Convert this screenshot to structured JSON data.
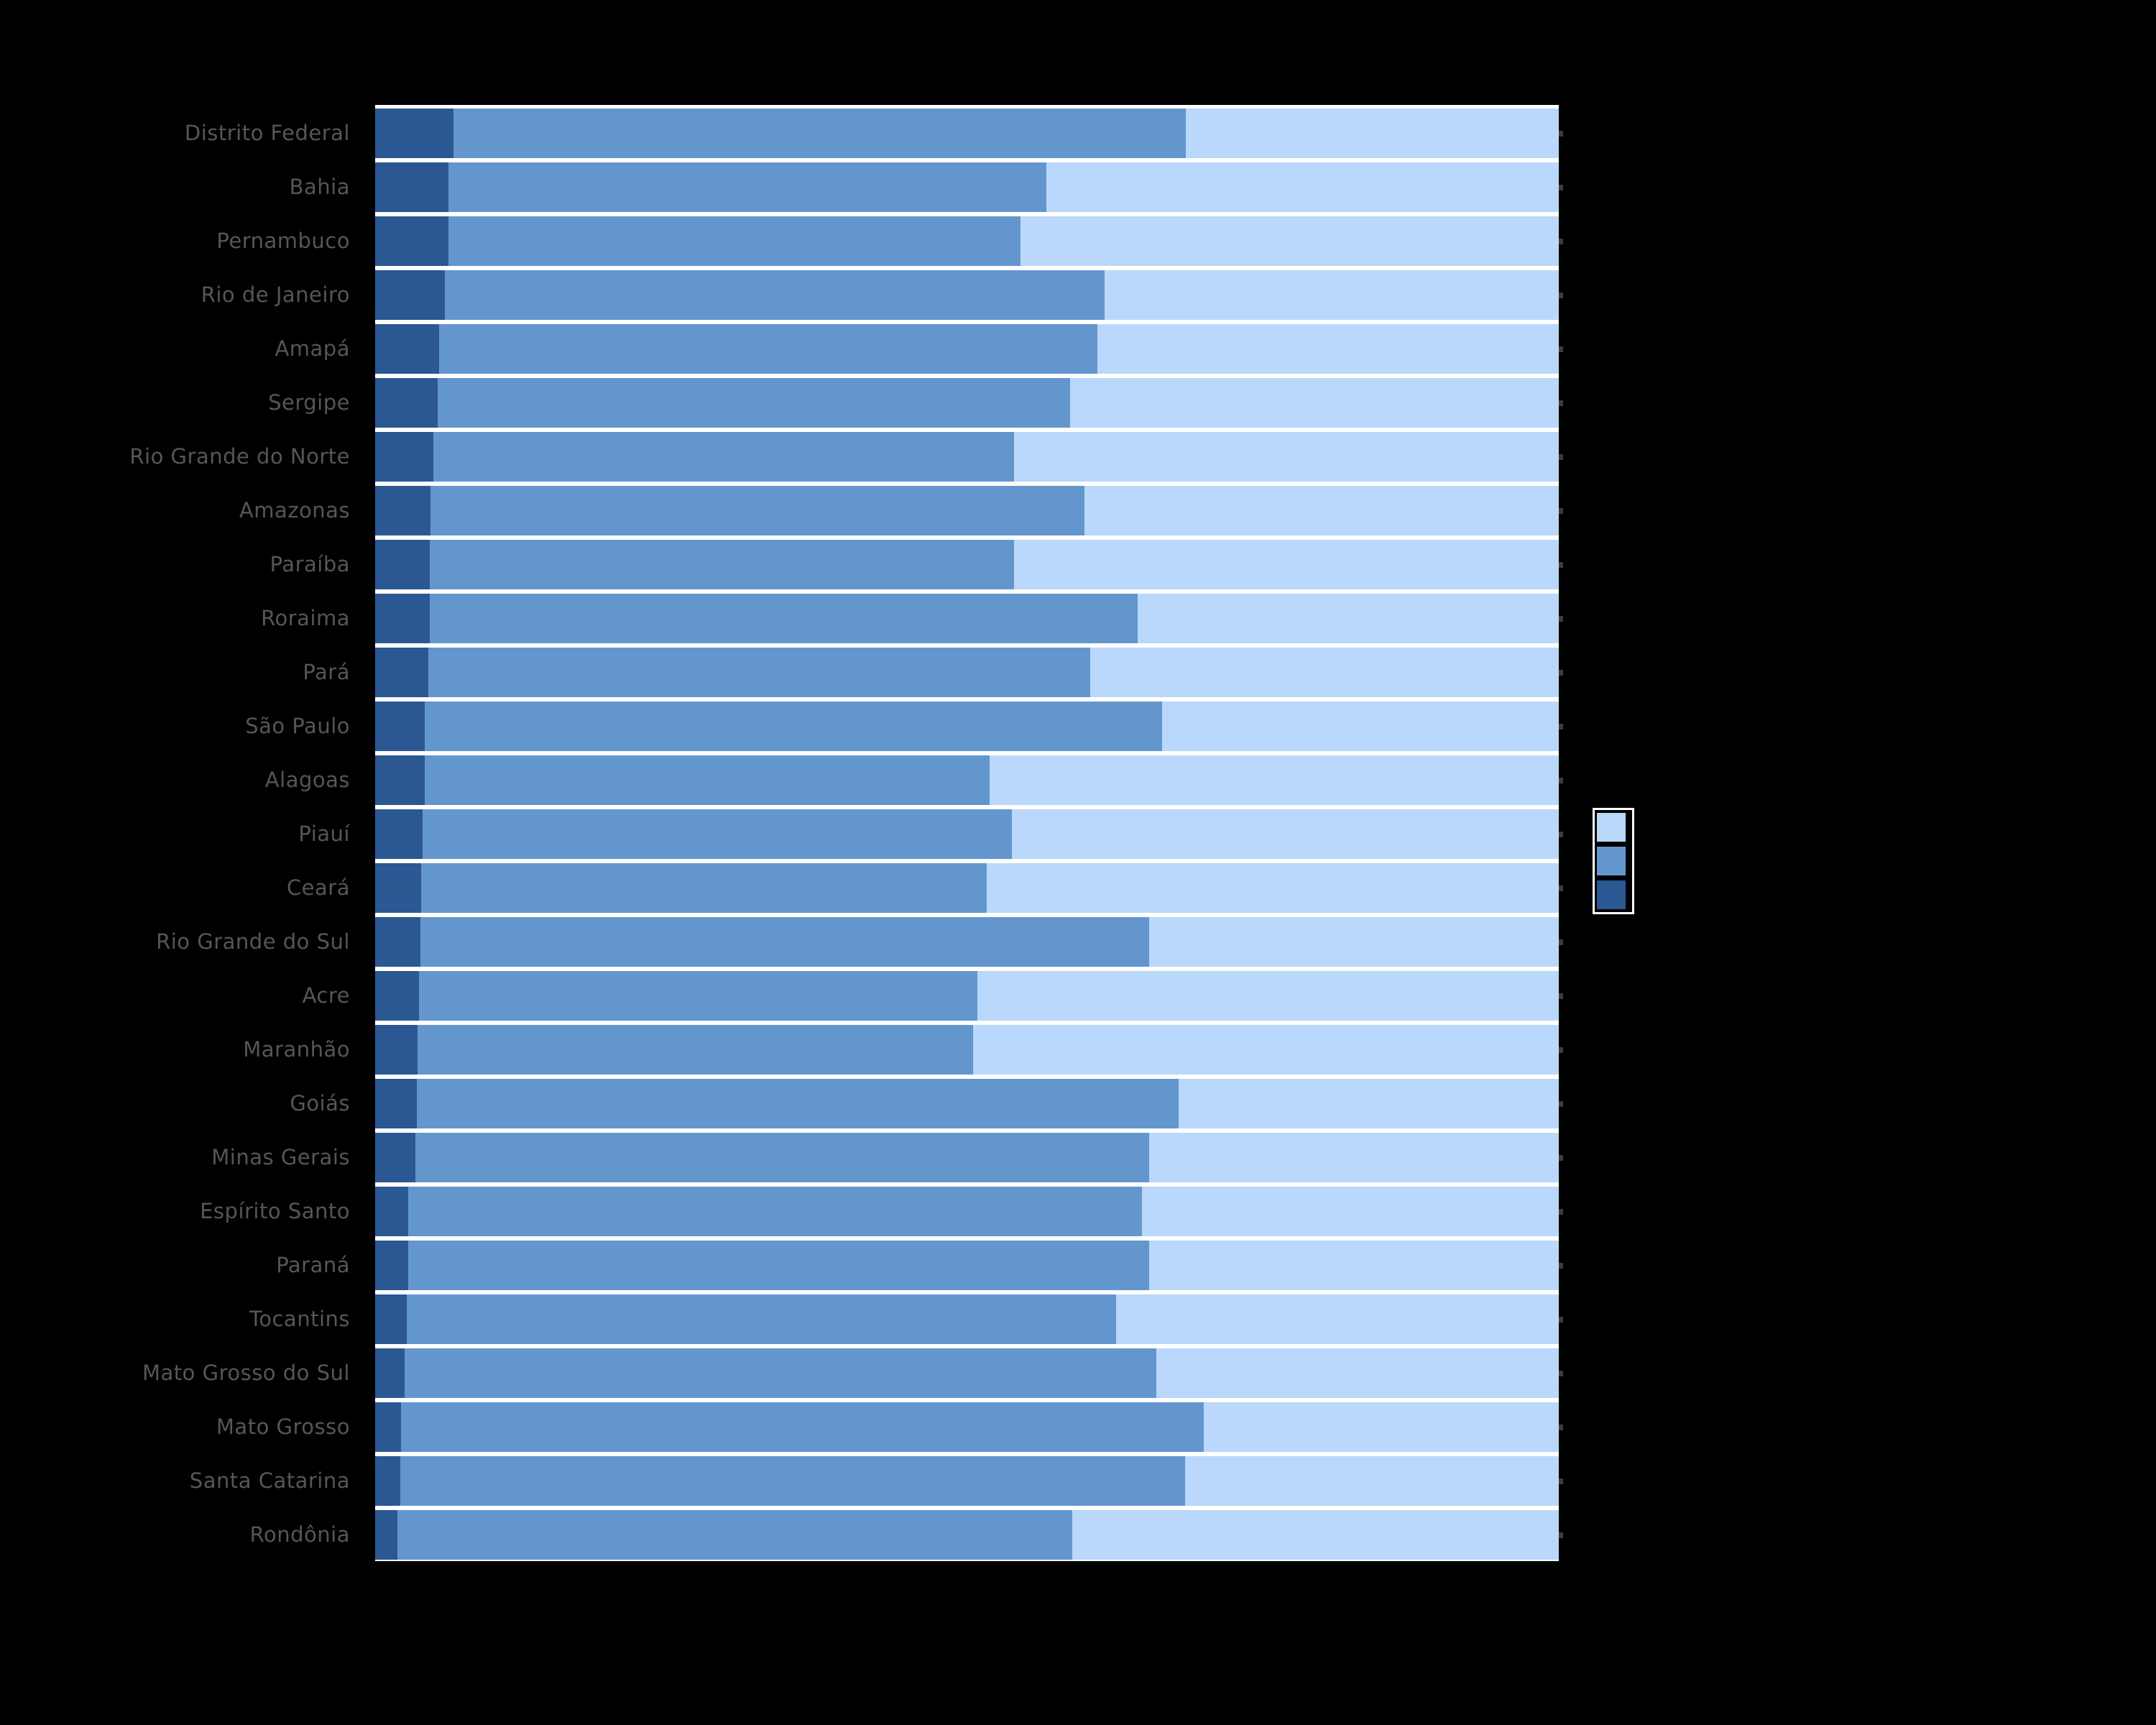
{
  "figure": {
    "background_color": "#000000",
    "plot_background_color": "#ffffff",
    "tick_label_color": "#565656"
  },
  "legend": {
    "position": "right-center",
    "entries": [
      {
        "name": "light-blue",
        "color": "#B9D8FB",
        "label": ""
      },
      {
        "name": "medium-blue",
        "color": "#6496CE",
        "label": ""
      },
      {
        "name": "dark-blue",
        "color": "#2B5792",
        "label": ""
      }
    ]
  },
  "chart_data": {
    "type": "bar",
    "orientation": "horizontal",
    "stacked": true,
    "unit": "percent",
    "x_range": [
      0,
      100
    ],
    "grid": false,
    "categories": [
      "Distrito Federal",
      "Bahia",
      "Pernambuco",
      "Rio de Janeiro",
      "Amapá",
      "Sergipe",
      "Rio Grande do Norte",
      "Amazonas",
      "Paraíba",
      "Roraima",
      "Pará",
      "São Paulo",
      "Alagoas",
      "Piauí",
      "Ceará",
      "Rio Grande do Sul",
      "Acre",
      "Maranhão",
      "Goiás",
      "Minas Gerais",
      "Espírito Santo",
      "Paraná",
      "Tocantins",
      "Mato Grosso do Sul",
      "Mato Grosso",
      "Santa Catarina",
      "Rondônia"
    ],
    "series": [
      {
        "name": "dark-blue",
        "color": "#2B5792",
        "values": [
          6.6,
          6.2,
          6.2,
          5.9,
          5.4,
          5.3,
          4.9,
          4.7,
          4.6,
          4.6,
          4.5,
          4.2,
          4.2,
          4.0,
          3.9,
          3.8,
          3.7,
          3.6,
          3.5,
          3.4,
          2.8,
          2.8,
          2.7,
          2.5,
          2.2,
          2.1,
          1.9
        ]
      },
      {
        "name": "medium-blue",
        "color": "#6496CE",
        "values": [
          61.9,
          50.5,
          48.3,
          55.7,
          55.6,
          53.4,
          49.1,
          55.2,
          49.4,
          59.8,
          55.9,
          62.3,
          47.7,
          49.8,
          47.8,
          61.6,
          47.2,
          46.9,
          64.4,
          62.0,
          62.0,
          62.6,
          59.9,
          63.5,
          67.8,
          66.3,
          57.0
        ]
      },
      {
        "name": "light-blue",
        "color": "#B9D8FB",
        "values": [
          31.5,
          43.3,
          45.5,
          38.4,
          39.0,
          41.3,
          46.0,
          40.1,
          46.0,
          35.6,
          39.6,
          33.5,
          48.1,
          46.2,
          48.3,
          34.6,
          49.1,
          49.5,
          32.1,
          34.6,
          35.2,
          34.6,
          37.4,
          34.0,
          30.0,
          31.6,
          41.1
        ]
      }
    ],
    "legend_order": [
      "light-blue",
      "medium-blue",
      "dark-blue"
    ]
  }
}
